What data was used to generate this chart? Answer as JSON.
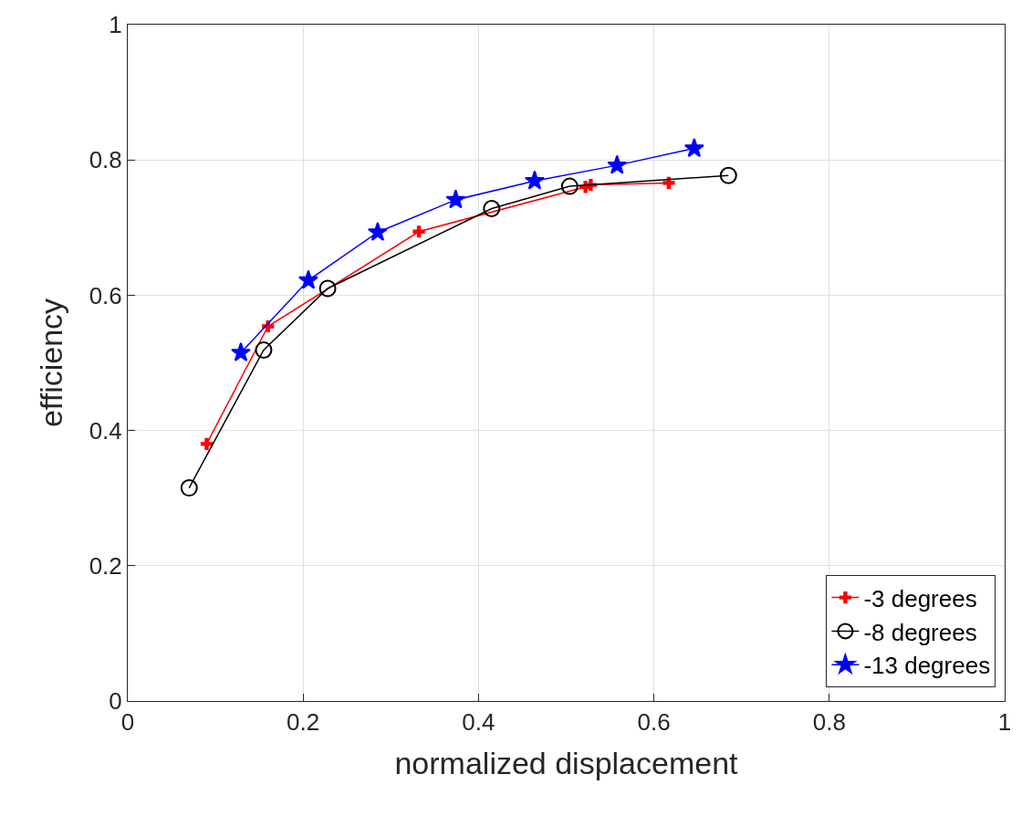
{
  "chart_data": {
    "type": "line",
    "xlabel": "normalized displacement",
    "ylabel": "efficiency",
    "xlim": [
      0,
      1
    ],
    "ylim": [
      0,
      1
    ],
    "xticks": [
      0,
      0.2,
      0.4,
      0.6,
      0.8,
      1
    ],
    "yticks": [
      0,
      0.2,
      0.4,
      0.6,
      0.8,
      1
    ],
    "grid": true,
    "legend": "bottom right",
    "line_style": "solid",
    "series": [
      {
        "name": "-3 degrees",
        "color": "#ff0000",
        "marker": "cross",
        "x": [
          0.09,
          0.16,
          0.332,
          0.522,
          0.528,
          0.617
        ],
        "values": [
          0.38,
          0.554,
          0.694,
          0.76,
          0.763,
          0.766
        ]
      },
      {
        "name": "-8 degrees",
        "color": "#000000",
        "marker": "circle",
        "x": [
          0.07,
          0.155,
          0.228,
          0.415,
          0.504,
          0.685
        ],
        "values": [
          0.315,
          0.519,
          0.61,
          0.728,
          0.761,
          0.777
        ]
      },
      {
        "name": "-13 degrees",
        "color": "#0000ff",
        "marker": "star",
        "x": [
          0.129,
          0.206,
          0.285,
          0.374,
          0.464,
          0.558,
          0.646
        ],
        "values": [
          0.515,
          0.622,
          0.693,
          0.741,
          0.769,
          0.792,
          0.817
        ]
      }
    ]
  }
}
